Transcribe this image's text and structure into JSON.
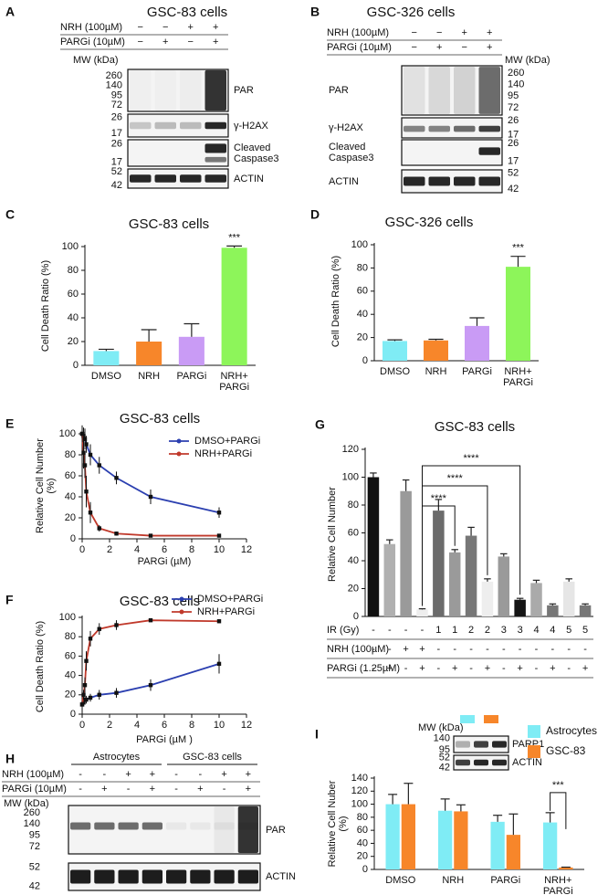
{
  "figure": {
    "a": {
      "letter": "A",
      "title": "GSC-83 cells",
      "rows": [
        {
          "label": "NRH (100µM)",
          "signs": [
            "−",
            "−",
            "+",
            "+"
          ]
        },
        {
          "label": "PARGi (10µM)",
          "signs": [
            "−",
            "+",
            "−",
            "+"
          ]
        }
      ],
      "mw_label": "MW (kDa)",
      "blots": [
        {
          "name": "PAR",
          "mw": [
            260,
            140,
            95,
            72
          ]
        },
        {
          "name": "γ-H2AX",
          "mw": [
            26,
            17
          ]
        },
        {
          "name": "Cleaved Caspase3",
          "mw": [
            26,
            17
          ]
        },
        {
          "name": "ACTIN",
          "mw": [
            52,
            42
          ]
        }
      ]
    },
    "b": {
      "letter": "B",
      "title": "GSC-326 cells",
      "rows": [
        {
          "label": "NRH (100µM)",
          "signs": [
            "−",
            "−",
            "+",
            "+"
          ]
        },
        {
          "label": "PARGi (10µM)",
          "signs": [
            "−",
            "+",
            "−",
            "+"
          ]
        }
      ],
      "mw_label": "MW (kDa)",
      "blots": [
        {
          "name": "PAR",
          "mw": [
            260,
            140,
            95,
            72
          ]
        },
        {
          "name": "γ-H2AX",
          "mw": [
            26,
            17
          ]
        },
        {
          "name": "Cleaved Caspase3",
          "mw": [
            26,
            17
          ]
        },
        {
          "name": "ACTIN",
          "mw": [
            52,
            42
          ]
        }
      ]
    },
    "h": {
      "letter": "H",
      "groups": [
        "Astrocytes",
        "GSC-83 cells"
      ],
      "rows": [
        {
          "label": "NRH (100µM)",
          "signs": [
            "-",
            "-",
            "+",
            "+",
            "-",
            "-",
            "+",
            "+"
          ]
        },
        {
          "label": "PARGi (10µM)",
          "signs": [
            "-",
            "+",
            "-",
            "+",
            "-",
            "+",
            "-",
            "+"
          ]
        }
      ],
      "mw_label": "MW (kDa)",
      "blots": [
        {
          "name": "PAR",
          "mw": [
            260,
            140,
            95,
            72
          ]
        },
        {
          "name": "ACTIN",
          "mw": [
            52,
            42
          ]
        }
      ]
    },
    "i_inset": {
      "mw_label": "MW (kDa)",
      "blots": [
        {
          "name": "PARP1",
          "mw": [
            140,
            95
          ]
        },
        {
          "name": "ACTIN",
          "mw": [
            52,
            42
          ]
        }
      ]
    }
  },
  "chart_data": [
    {
      "type": "bar",
      "panel": "C",
      "title": "GSC-83 cells",
      "ylabel": "Cell Death Ratio (%)",
      "categories": [
        "DMSO",
        "NRH",
        "PARGi",
        "NRH+ PARGi"
      ],
      "values": [
        12,
        20,
        24,
        99
      ],
      "errors": [
        1.5,
        10,
        11,
        1.5
      ],
      "colors": [
        "#7fecf5",
        "#f7862a",
        "#c99bf5",
        "#8df55a"
      ],
      "ylim": [
        0,
        100
      ],
      "yticks": [
        0,
        20,
        40,
        60,
        80,
        100
      ],
      "annotation": "***"
    },
    {
      "type": "bar",
      "panel": "D",
      "title": "GSC-326 cells",
      "ylabel": "Cell Death Ratio (%)",
      "categories": [
        "DMSO",
        "NRH",
        "PARGi",
        "NRH+ PARGi"
      ],
      "values": [
        17,
        17.5,
        30,
        81
      ],
      "errors": [
        1,
        1,
        7,
        9
      ],
      "colors": [
        "#7fecf5",
        "#f7862a",
        "#c99bf5",
        "#8df55a"
      ],
      "ylim": [
        0,
        100
      ],
      "yticks": [
        0,
        20,
        40,
        60,
        80,
        100
      ],
      "annotation": "***"
    },
    {
      "type": "line",
      "panel": "E",
      "title": "GSC-83 cells",
      "ylabel": "Relative Cell Number (%)",
      "xlabel": "PARGi (µM)",
      "x": [
        0,
        0.1,
        0.2,
        0.3,
        0.6,
        1.25,
        2.5,
        5,
        10
      ],
      "series": [
        {
          "name": "DMSO+PARGi",
          "color": "#2b3fb0",
          "values": [
            100,
            98,
            95,
            90,
            80,
            70,
            58,
            40,
            25
          ],
          "errors": [
            5,
            8,
            10,
            8,
            10,
            8,
            6,
            7,
            5
          ]
        },
        {
          "name": "NRH+PARGi",
          "color": "#c0392b",
          "values": [
            100,
            82,
            70,
            45,
            25,
            10,
            5,
            3,
            3
          ],
          "errors": [
            8,
            15,
            12,
            15,
            10,
            3,
            2,
            1,
            1
          ]
        }
      ],
      "xlim": [
        0,
        12
      ],
      "xticks": [
        0,
        2,
        4,
        6,
        8,
        10,
        12
      ],
      "ylim": [
        0,
        100
      ],
      "yticks": [
        0,
        20,
        40,
        60,
        80,
        100
      ],
      "legend": "upper right"
    },
    {
      "type": "line",
      "panel": "F",
      "title": "GSC-83 cells",
      "ylabel": "Cell Death Ratio (%)",
      "xlabel": "PARGi (µM )",
      "x": [
        0,
        0.1,
        0.2,
        0.3,
        0.6,
        1.25,
        2.5,
        5,
        10
      ],
      "series": [
        {
          "name": "DMSO+PARGi",
          "color": "#2b3fb0",
          "values": [
            10,
            12,
            15,
            15,
            17,
            20,
            22,
            30,
            52
          ],
          "errors": [
            3,
            3,
            4,
            4,
            4,
            5,
            5,
            6,
            10
          ]
        },
        {
          "name": "NRH+PARGi",
          "color": "#c0392b",
          "values": [
            10,
            20,
            30,
            55,
            78,
            88,
            92,
            97,
            96
          ],
          "errors": [
            3,
            5,
            8,
            10,
            8,
            6,
            5,
            2,
            2
          ]
        }
      ],
      "xlim": [
        0,
        12
      ],
      "xticks": [
        0,
        2,
        4,
        6,
        8,
        10,
        12
      ],
      "ylim": [
        0,
        100
      ],
      "yticks": [
        0,
        20,
        40,
        60,
        80,
        100
      ],
      "legend": "upper right"
    },
    {
      "type": "bar",
      "panel": "G",
      "title": "GSC-83 cells",
      "ylabel": "Relative Cell Number",
      "values": [
        100,
        52,
        90,
        5,
        76,
        46,
        58,
        25,
        43,
        12,
        24,
        8,
        25,
        8
      ],
      "errors": [
        3,
        3,
        8,
        0.5,
        8,
        2,
        6,
        2,
        2,
        1,
        2,
        1,
        2,
        1
      ],
      "colors": [
        "#111111",
        "#b0b0b0",
        "#9a9a9a",
        "#eeeeee",
        "#6b6b6b",
        "#9a9a9a",
        "#777777",
        "#eeeeee",
        "#9a9a9a",
        "#151515",
        "#aaaaaa",
        "#777777",
        "#e6e6e6",
        "#777777"
      ],
      "ylim": [
        0,
        120
      ],
      "yticks": [
        0,
        20,
        40,
        60,
        80,
        100,
        120
      ],
      "annotations": [
        "****",
        "****",
        "****"
      ],
      "conditions": [
        {
          "label": "IR (Gy)",
          "values": [
            "-",
            "-",
            "-",
            "-",
            "1",
            "1",
            "2",
            "2",
            "3",
            "3",
            "4",
            "4",
            "5",
            "5"
          ]
        },
        {
          "label": "NRH (100µM)",
          "values": [
            "-",
            "-",
            "+",
            "+",
            "-",
            "-",
            "-",
            "-",
            "-",
            "-",
            "-",
            "-",
            "-",
            "-"
          ]
        },
        {
          "label": "PARGi (1.25µM)",
          "values": [
            "-",
            "+",
            "-",
            "+",
            "-",
            "+",
            "-",
            "+",
            "-",
            "+",
            "-",
            "+",
            "-",
            "+"
          ]
        }
      ]
    },
    {
      "type": "bar",
      "panel": "I",
      "ylabel": "Relative Cell Nuber (%)",
      "categories": [
        "DMSO",
        "NRH",
        "PARGi",
        "NRH+ PARGi"
      ],
      "series": [
        {
          "name": "Astrocytes",
          "color": "#7fecf5",
          "values": [
            100,
            90,
            73,
            72
          ],
          "errors": [
            15,
            18,
            10,
            15
          ]
        },
        {
          "name": "GSC-83",
          "color": "#f7862a",
          "values": [
            100,
            89,
            53,
            3
          ],
          "errors": [
            32,
            10,
            32,
            0.5
          ]
        }
      ],
      "ylim": [
        0,
        140
      ],
      "yticks": [
        0,
        20,
        40,
        60,
        80,
        100,
        120,
        140
      ],
      "annotation": "***",
      "legend": "upper right"
    }
  ]
}
